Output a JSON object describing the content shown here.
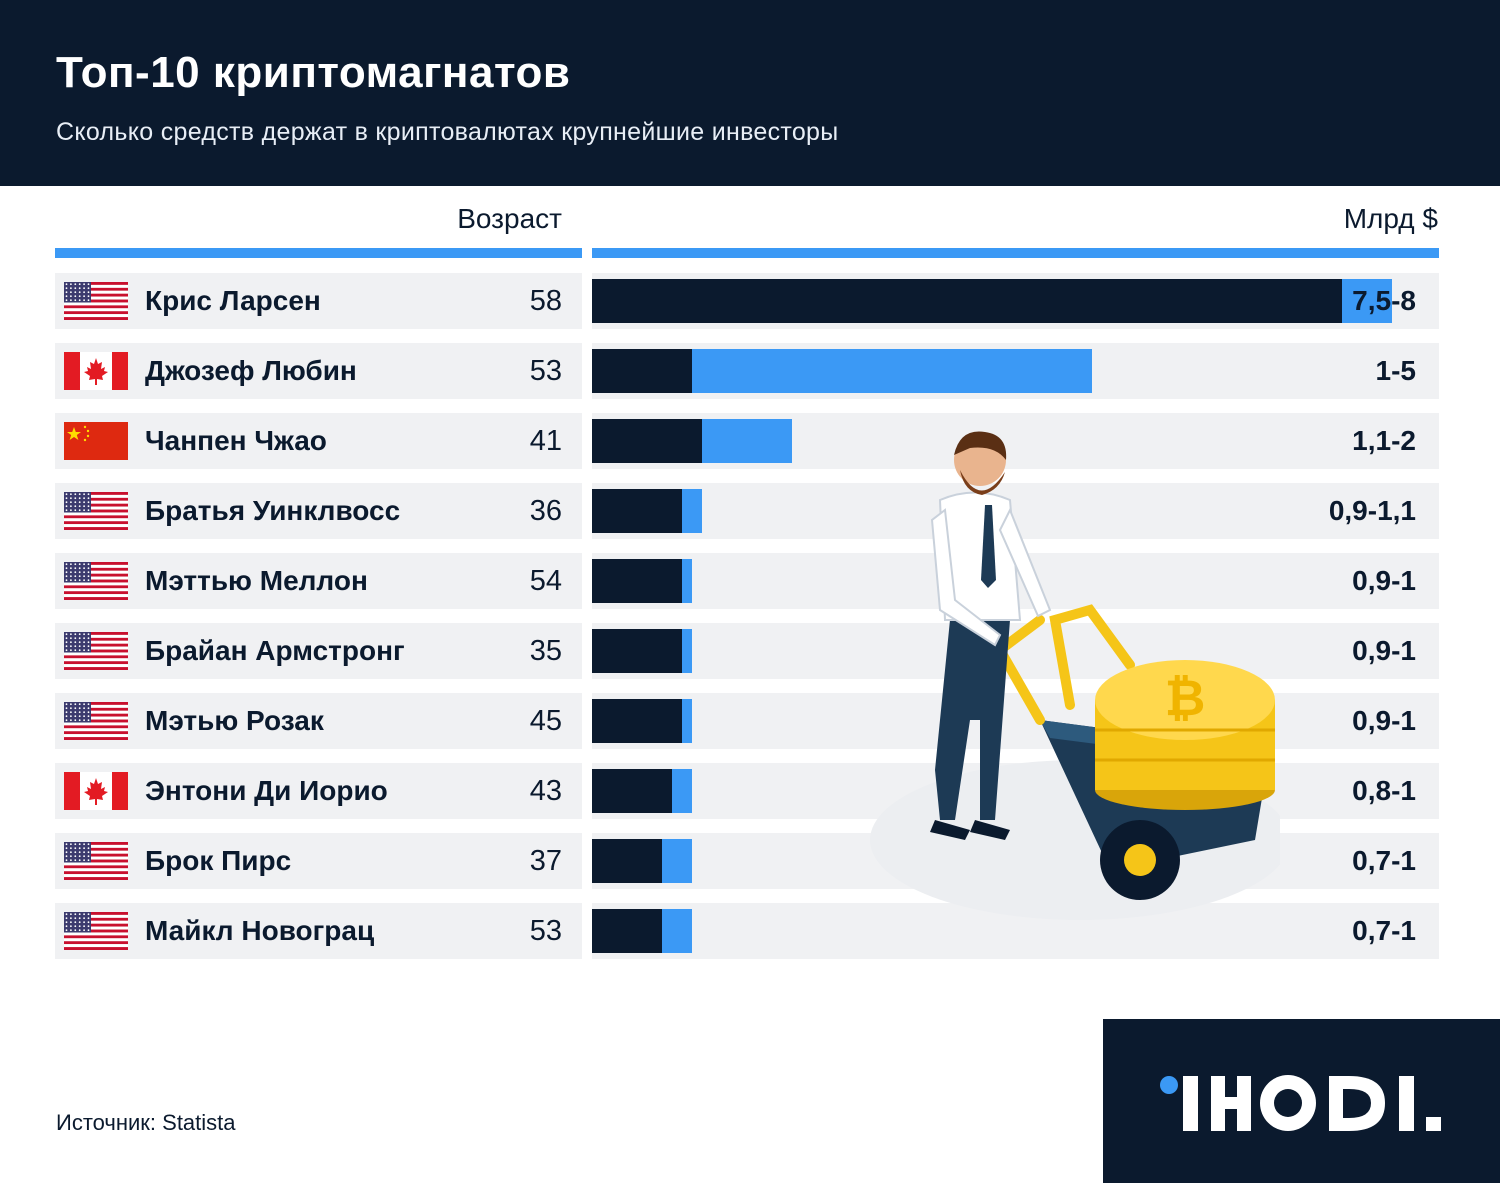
{
  "header": {
    "title": "Топ-10 криптомагнатов",
    "subtitle": "Сколько средств держат в криптовалютах крупнейшие инвесторы"
  },
  "columns": {
    "age": "Возраст",
    "value": "Млрд $"
  },
  "colors": {
    "dark": "#0b1a2e",
    "accent": "#3b99f5",
    "row_bg": "#f0f1f3",
    "coin": "#f5c518"
  },
  "chart_data": {
    "type": "bar",
    "title": "Топ-10 криптомагнатов",
    "subtitle": "Сколько средств держат в криптовалютах крупнейшие инвесторы",
    "xlabel": "",
    "ylabel": "Млрд $",
    "categories": [
      "Крис Ларсен",
      "Джозеф Любин",
      "Чанпен Чжао",
      "Братья Уинклвосс",
      "Мэттью Меллон",
      "Брайан Армстронг",
      "Мэтью Розак",
      "Энтони Ди Иорио",
      "Брок Пирс",
      "Майкл Новограц"
    ],
    "series": [
      {
        "values": [
          7.5,
          1,
          1.1,
          0.9,
          0.9,
          0.9,
          0.9,
          0.8,
          0.7,
          0.7
        ]
      },
      {
        "values": [
          8,
          5,
          2,
          1.1,
          1,
          1,
          1,
          1,
          1,
          1
        ]
      }
    ],
    "ylim": [
      0,
      8
    ],
    "rows": [
      {
        "flag": "us-flag-icon",
        "name": "Крис Ларсен",
        "age": "58",
        "label": "7,5-8"
      },
      {
        "flag": "canada-flag-icon",
        "name": "Джозеф Любин",
        "age": "53",
        "label": "1-5"
      },
      {
        "flag": "china-flag-icon",
        "name": "Чанпен Чжао",
        "age": "41",
        "label": "1,1-2"
      },
      {
        "flag": "us-flag-icon",
        "name": "Братья Уинклвосс",
        "age": "36",
        "label": "0,9-1,1"
      },
      {
        "flag": "us-flag-icon",
        "name": "Мэттью Меллон",
        "age": "54",
        "label": "0,9-1"
      },
      {
        "flag": "us-flag-icon",
        "name": "Брайан Армстронг",
        "age": "35",
        "label": "0,9-1"
      },
      {
        "flag": "us-flag-icon",
        "name": "Мэтью Розак",
        "age": "45",
        "label": "0,9-1"
      },
      {
        "flag": "canada-flag-icon",
        "name": "Энтони Ди Иорио",
        "age": "43",
        "label": "0,8-1"
      },
      {
        "flag": "us-flag-icon",
        "name": "Брок Пирс",
        "age": "37",
        "label": "0,7-1"
      },
      {
        "flag": "us-flag-icon",
        "name": "Майкл Новограц",
        "age": "53",
        "label": "0,7-1"
      }
    ]
  },
  "illustration": "businessman-pushing-bitcoin-wheelbarrow",
  "footer": {
    "source": "Источник: Statista",
    "logo": "IHODL"
  }
}
